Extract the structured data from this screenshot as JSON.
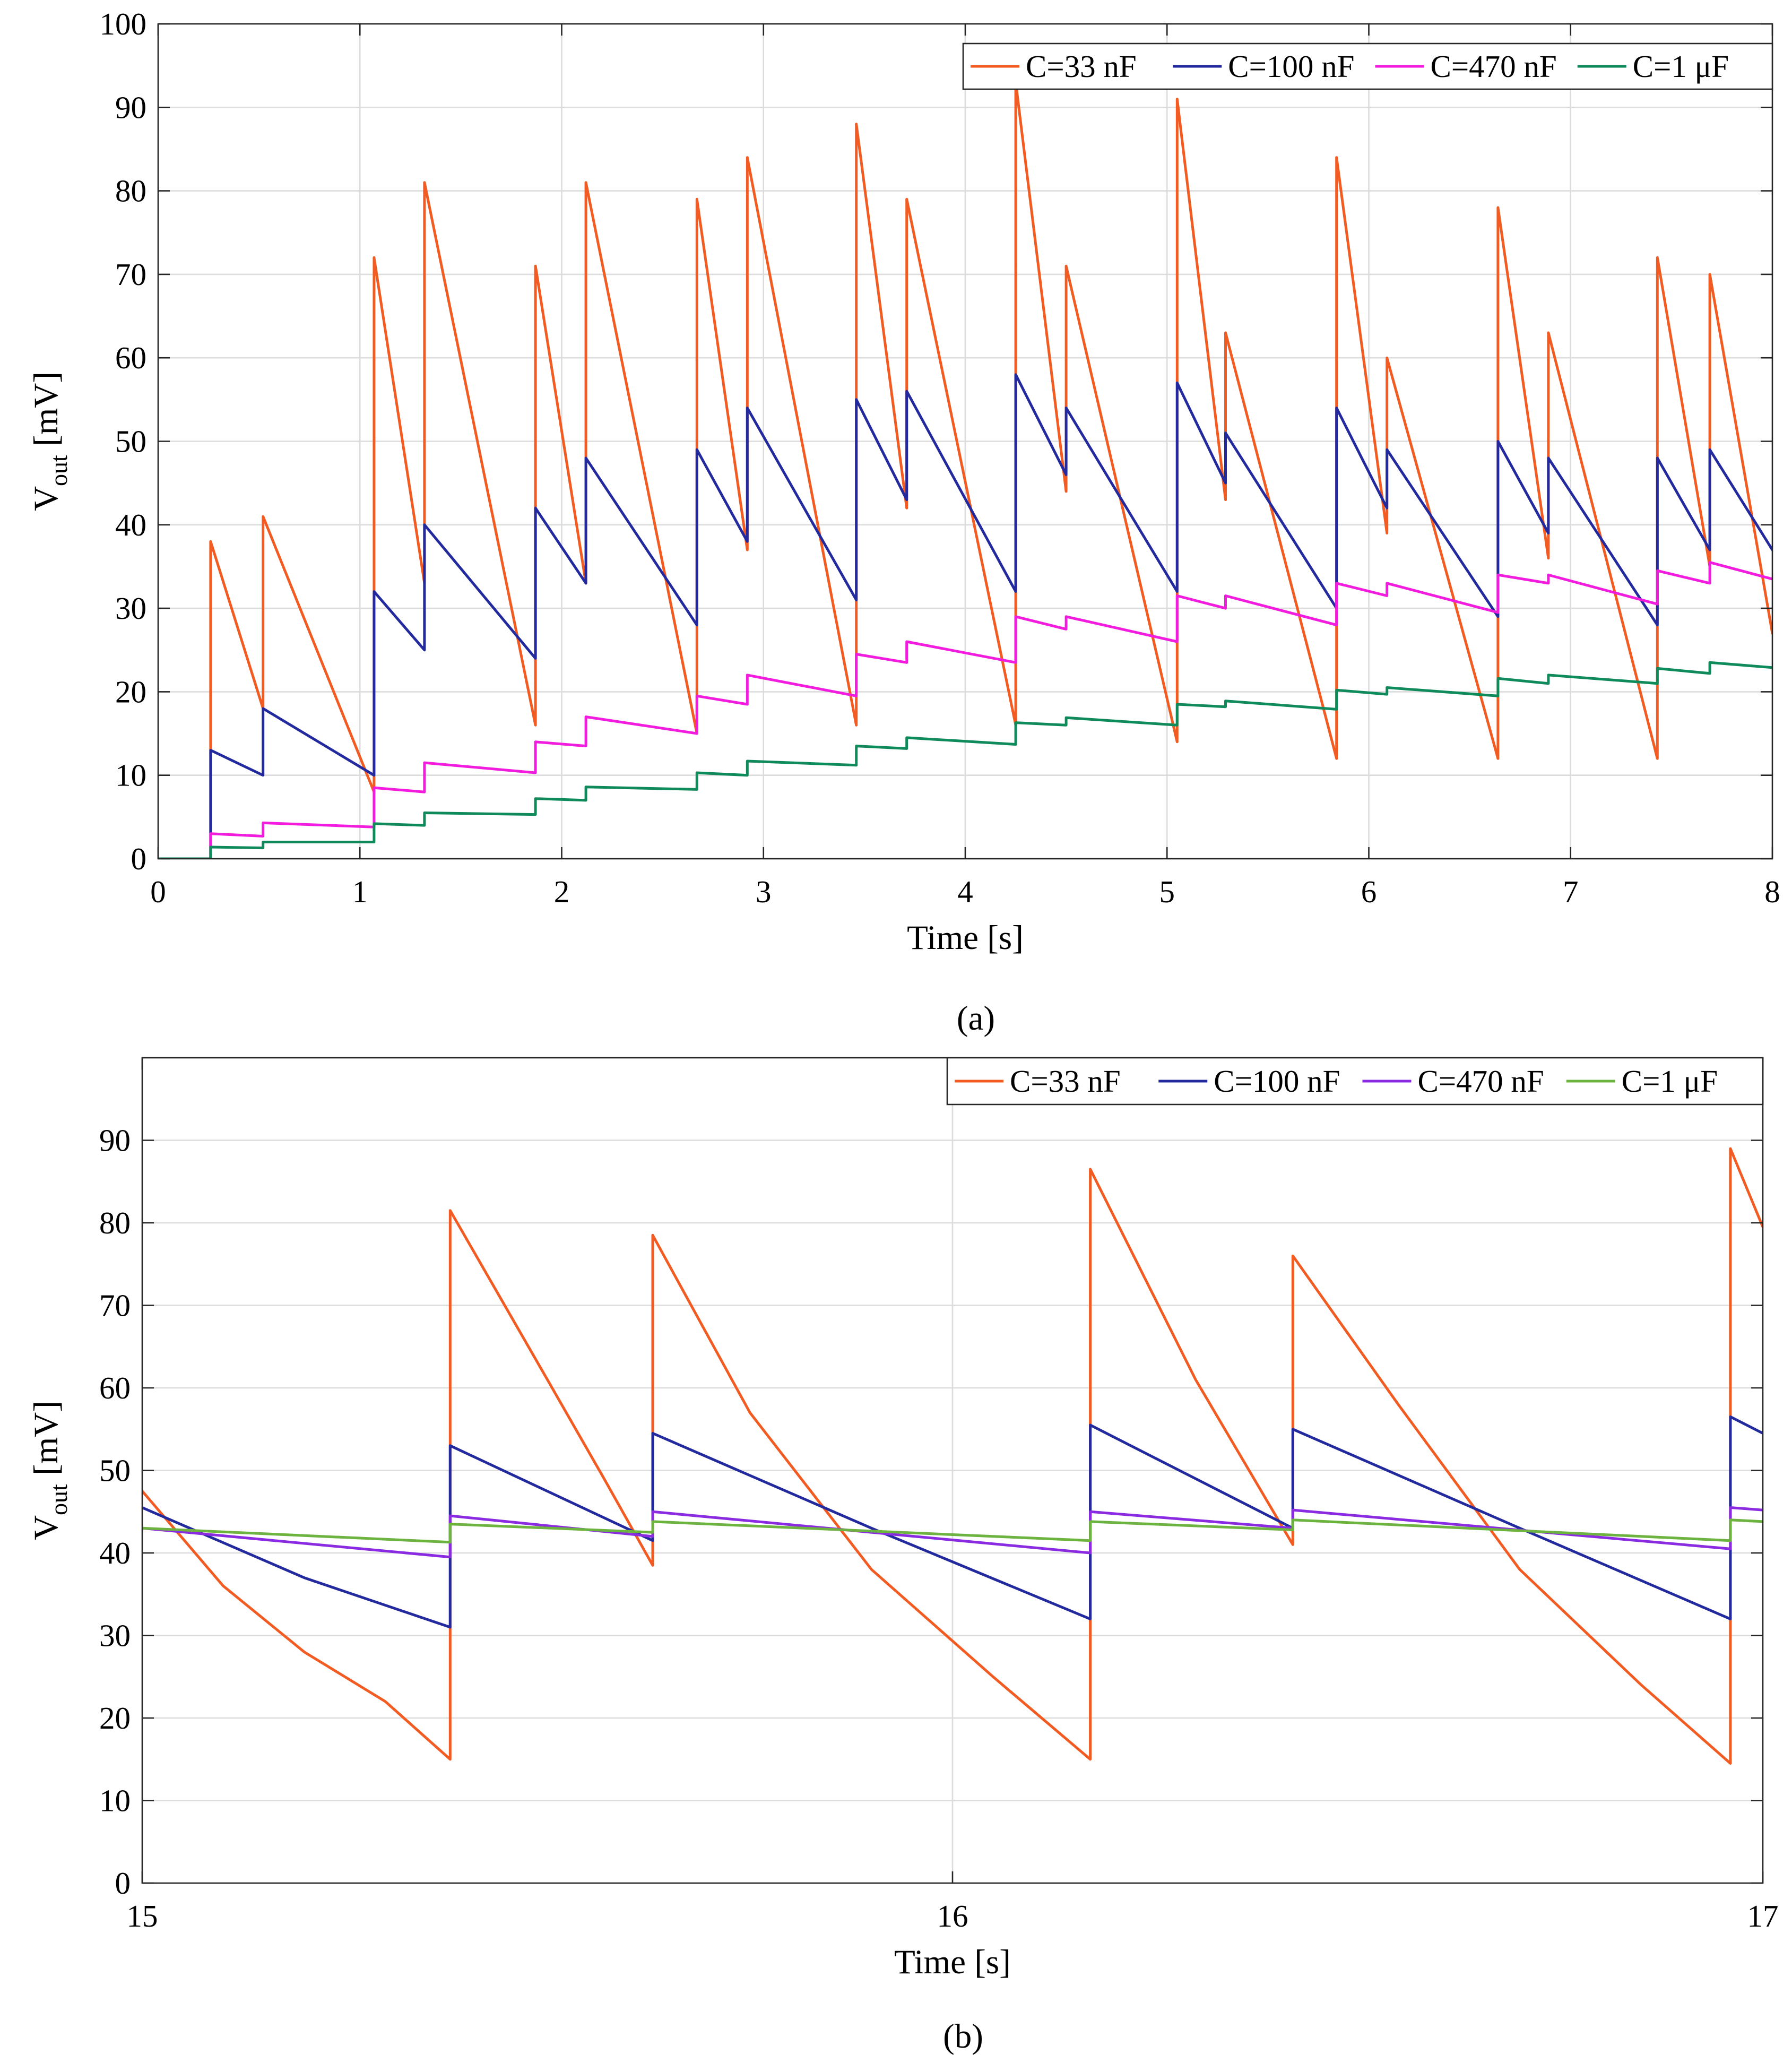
{
  "chart_data": [
    {
      "panel_label": "(a)",
      "type": "line",
      "title": "",
      "xlabel": "Time [s]",
      "ylabel": "Vout [mV]",
      "ylabel_main": "V",
      "ylabel_sub": "out",
      "ylabel_unit": " [mV]",
      "xlim": [
        0,
        8
      ],
      "ylim": [
        0,
        100
      ],
      "x_ticks": [
        0,
        1,
        2,
        3,
        4,
        5,
        6,
        7,
        8
      ],
      "y_ticks": [
        0,
        10,
        20,
        30,
        40,
        50,
        60,
        70,
        80,
        90,
        100
      ],
      "grid": true,
      "legend_position": "top-right",
      "series": [
        {
          "name": "C=33 nF",
          "color": "#f25c22",
          "points": [
            [
              0,
              0
            ],
            [
              0.26,
              0
            ],
            [
              0.26,
              38
            ],
            [
              0.52,
              18
            ],
            [
              0.52,
              41
            ],
            [
              1.07,
              8
            ],
            [
              1.07,
              72
            ],
            [
              1.32,
              33
            ],
            [
              1.32,
              81
            ],
            [
              1.87,
              16
            ],
            [
              1.87,
              71
            ],
            [
              2.12,
              33
            ],
            [
              2.12,
              81
            ],
            [
              2.67,
              15
            ],
            [
              2.67,
              79
            ],
            [
              2.92,
              37
            ],
            [
              2.92,
              84
            ],
            [
              3.46,
              16
            ],
            [
              3.46,
              88
            ],
            [
              3.71,
              42
            ],
            [
              3.71,
              79
            ],
            [
              4.25,
              16
            ],
            [
              4.25,
              93
            ],
            [
              4.5,
              44
            ],
            [
              4.5,
              71
            ],
            [
              5.05,
              14
            ],
            [
              5.05,
              91
            ],
            [
              5.29,
              43
            ],
            [
              5.29,
              63
            ],
            [
              5.84,
              12
            ],
            [
              5.84,
              84
            ],
            [
              6.09,
              39
            ],
            [
              6.09,
              60
            ],
            [
              6.64,
              12
            ],
            [
              6.64,
              78
            ],
            [
              6.89,
              36
            ],
            [
              6.89,
              63
            ],
            [
              7.43,
              12
            ],
            [
              7.43,
              72
            ],
            [
              7.69,
              35
            ],
            [
              7.69,
              70
            ],
            [
              8.0,
              27
            ]
          ]
        },
        {
          "name": "C=100 nF",
          "color": "#232a9e",
          "points": [
            [
              0,
              0
            ],
            [
              0.26,
              0
            ],
            [
              0.26,
              13
            ],
            [
              0.52,
              10
            ],
            [
              0.52,
              18
            ],
            [
              1.07,
              10
            ],
            [
              1.07,
              32
            ],
            [
              1.32,
              25
            ],
            [
              1.32,
              40
            ],
            [
              1.87,
              24
            ],
            [
              1.87,
              42
            ],
            [
              2.12,
              33
            ],
            [
              2.12,
              48
            ],
            [
              2.67,
              28
            ],
            [
              2.67,
              49
            ],
            [
              2.92,
              38
            ],
            [
              2.92,
              54
            ],
            [
              3.46,
              31
            ],
            [
              3.46,
              55
            ],
            [
              3.71,
              43
            ],
            [
              3.71,
              56
            ],
            [
              4.25,
              32
            ],
            [
              4.25,
              58
            ],
            [
              4.5,
              46
            ],
            [
              4.5,
              54
            ],
            [
              5.05,
              32
            ],
            [
              5.05,
              57
            ],
            [
              5.29,
              45
            ],
            [
              5.29,
              51
            ],
            [
              5.84,
              30
            ],
            [
              5.84,
              54
            ],
            [
              6.09,
              42
            ],
            [
              6.09,
              49
            ],
            [
              6.64,
              29
            ],
            [
              6.64,
              50
            ],
            [
              6.89,
              39
            ],
            [
              6.89,
              48
            ],
            [
              7.43,
              28
            ],
            [
              7.43,
              48
            ],
            [
              7.69,
              37
            ],
            [
              7.69,
              49
            ],
            [
              8.0,
              37
            ]
          ]
        },
        {
          "name": "C=470 nF",
          "color": "#f21cde",
          "points": [
            [
              0,
              0
            ],
            [
              0.26,
              0
            ],
            [
              0.26,
              3
            ],
            [
              0.52,
              2.7
            ],
            [
              0.52,
              4.3
            ],
            [
              1.07,
              3.8
            ],
            [
              1.07,
              8.5
            ],
            [
              1.32,
              8
            ],
            [
              1.32,
              11.5
            ],
            [
              1.87,
              10.3
            ],
            [
              1.87,
              14
            ],
            [
              2.12,
              13.5
            ],
            [
              2.12,
              17
            ],
            [
              2.67,
              15
            ],
            [
              2.67,
              19.5
            ],
            [
              2.92,
              18.5
            ],
            [
              2.92,
              22
            ],
            [
              3.46,
              19.5
            ],
            [
              3.46,
              24.5
            ],
            [
              3.71,
              23.5
            ],
            [
              3.71,
              26
            ],
            [
              4.25,
              23.5
            ],
            [
              4.25,
              29
            ],
            [
              4.5,
              27.5
            ],
            [
              4.5,
              29
            ],
            [
              5.05,
              26
            ],
            [
              5.05,
              31.5
            ],
            [
              5.29,
              30
            ],
            [
              5.29,
              31.5
            ],
            [
              5.84,
              28
            ],
            [
              5.84,
              33
            ],
            [
              6.09,
              31.5
            ],
            [
              6.09,
              33
            ],
            [
              6.64,
              29.5
            ],
            [
              6.64,
              34
            ],
            [
              6.89,
              33
            ],
            [
              6.89,
              34
            ],
            [
              7.43,
              30.5
            ],
            [
              7.43,
              34.5
            ],
            [
              7.69,
              33
            ],
            [
              7.69,
              35.5
            ],
            [
              8.0,
              33.5
            ]
          ]
        },
        {
          "name": "C=1 μF",
          "color": "#0f8a5a",
          "points": [
            [
              0,
              0
            ],
            [
              0.26,
              0
            ],
            [
              0.26,
              1.4
            ],
            [
              0.52,
              1.3
            ],
            [
              0.52,
              2
            ],
            [
              1.07,
              2
            ],
            [
              1.07,
              4.2
            ],
            [
              1.32,
              4
            ],
            [
              1.32,
              5.5
            ],
            [
              1.87,
              5.3
            ],
            [
              1.87,
              7.2
            ],
            [
              2.12,
              7
            ],
            [
              2.12,
              8.6
            ],
            [
              2.67,
              8.3
            ],
            [
              2.67,
              10.3
            ],
            [
              2.92,
              10
            ],
            [
              2.92,
              11.7
            ],
            [
              3.46,
              11.2
            ],
            [
              3.46,
              13.5
            ],
            [
              3.71,
              13.2
            ],
            [
              3.71,
              14.5
            ],
            [
              4.25,
              13.7
            ],
            [
              4.25,
              16.3
            ],
            [
              4.5,
              16
            ],
            [
              4.5,
              16.9
            ],
            [
              5.05,
              16
            ],
            [
              5.05,
              18.5
            ],
            [
              5.29,
              18.2
            ],
            [
              5.29,
              18.9
            ],
            [
              5.84,
              17.9
            ],
            [
              5.84,
              20.2
            ],
            [
              6.09,
              19.7
            ],
            [
              6.09,
              20.5
            ],
            [
              6.64,
              19.5
            ],
            [
              6.64,
              21.6
            ],
            [
              6.89,
              21
            ],
            [
              6.89,
              22
            ],
            [
              7.43,
              21
            ],
            [
              7.43,
              22.8
            ],
            [
              7.69,
              22.2
            ],
            [
              7.69,
              23.5
            ],
            [
              8.0,
              22.9
            ]
          ]
        }
      ]
    },
    {
      "panel_label": "(b)",
      "type": "line",
      "title": "",
      "xlabel": "Time [s]",
      "ylabel": "Vout [mV]",
      "ylabel_main": "V",
      "ylabel_sub": "out",
      "ylabel_unit": " [mV]",
      "xlim": [
        15,
        17
      ],
      "ylim": [
        0,
        100
      ],
      "x_ticks": [
        15,
        16,
        17
      ],
      "y_ticks": [
        0,
        10,
        20,
        30,
        40,
        50,
        60,
        70,
        80,
        90
      ],
      "grid": true,
      "legend_position": "top-right",
      "series": [
        {
          "name": "C=33 nF",
          "color": "#f25c22",
          "points": [
            [
              15.0,
              47.5
            ],
            [
              15.1,
              36
            ],
            [
              15.2,
              28
            ],
            [
              15.3,
              22
            ],
            [
              15.38,
              15
            ],
            [
              15.38,
              81.5
            ],
            [
              15.5,
              61
            ],
            [
              15.57,
              49
            ],
            [
              15.63,
              38.5
            ],
            [
              15.63,
              78.5
            ],
            [
              15.75,
              57
            ],
            [
              15.9,
              38
            ],
            [
              16.05,
              25
            ],
            [
              16.17,
              15
            ],
            [
              16.17,
              86.5
            ],
            [
              16.3,
              61
            ],
            [
              16.42,
              41
            ],
            [
              16.42,
              76
            ],
            [
              16.55,
              58
            ],
            [
              16.7,
              38
            ],
            [
              16.85,
              24
            ],
            [
              16.96,
              14.5
            ],
            [
              16.96,
              89
            ],
            [
              17.0,
              79.5
            ]
          ]
        },
        {
          "name": "C=100 nF",
          "color": "#232a9e",
          "points": [
            [
              15.0,
              45.5
            ],
            [
              15.2,
              37
            ],
            [
              15.38,
              31
            ],
            [
              15.38,
              53
            ],
            [
              15.63,
              41.5
            ],
            [
              15.63,
              54.5
            ],
            [
              15.9,
              43
            ],
            [
              16.17,
              32
            ],
            [
              16.17,
              55.5
            ],
            [
              16.42,
              43
            ],
            [
              16.42,
              55
            ],
            [
              16.7,
              43
            ],
            [
              16.96,
              32
            ],
            [
              16.96,
              56.5
            ],
            [
              17.0,
              54.5
            ]
          ]
        },
        {
          "name": "C=470 nF",
          "color": "#8a2be2",
          "points": [
            [
              15.0,
              43
            ],
            [
              15.38,
              39.5
            ],
            [
              15.38,
              44.5
            ],
            [
              15.63,
              42
            ],
            [
              15.63,
              45
            ],
            [
              16.17,
              40
            ],
            [
              16.17,
              45
            ],
            [
              16.42,
              43
            ],
            [
              16.42,
              45.2
            ],
            [
              16.96,
              40.5
            ],
            [
              16.96,
              45.5
            ],
            [
              17.0,
              45.2
            ]
          ]
        },
        {
          "name": "C=1 μF",
          "color": "#6db33f",
          "points": [
            [
              15.0,
              43
            ],
            [
              15.38,
              41.3
            ],
            [
              15.38,
              43.5
            ],
            [
              15.63,
              42.5
            ],
            [
              15.63,
              43.8
            ],
            [
              16.17,
              41.5
            ],
            [
              16.17,
              43.8
            ],
            [
              16.42,
              42.8
            ],
            [
              16.42,
              44
            ],
            [
              16.96,
              41.5
            ],
            [
              16.96,
              44
            ],
            [
              17.0,
              43.8
            ]
          ]
        }
      ]
    }
  ]
}
